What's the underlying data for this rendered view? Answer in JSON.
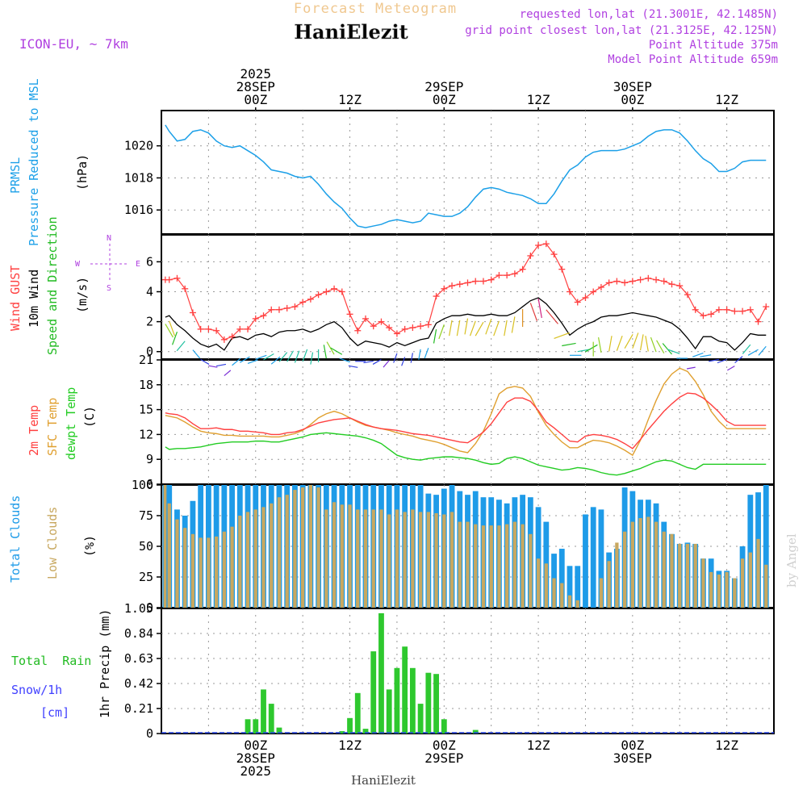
{
  "header": {
    "title": "Forecast Meteogram",
    "location": "HaniElezit",
    "model": "ICON-EU, ~ 7km",
    "info": [
      "requested lon,lat (21.3001E, 42.1485N)",
      "grid point closest lon,lat (21.3125E, 42.125N)",
      "Point Altitude 375m",
      "Model Point Altitude 659m"
    ]
  },
  "footer": {
    "location": "HaniElezit",
    "credit": "by Angel"
  },
  "colors": {
    "pressure": "#1ca0e8",
    "gust": "#ff4040",
    "wind": "#000000",
    "dir": "#22bb22",
    "t2m": "#ff4040",
    "tsfc": "#e0a030",
    "dewpt": "#22cc22",
    "cloud_total": "#1e9be8",
    "cloud_low": "#c8a860",
    "rain": "#2ec82e",
    "snow": "#4040ff",
    "purple": "#b040e0",
    "title": "#f0c890"
  },
  "time_axis": {
    "top_labels": [
      {
        "lines": [
          "2025",
          "28SEP",
          "00Z"
        ],
        "h": 24
      },
      {
        "lines": [
          "12Z"
        ],
        "h": 36
      },
      {
        "lines": [
          "29SEP",
          "00Z"
        ],
        "h": 48
      },
      {
        "lines": [
          "12Z"
        ],
        "h": 60
      },
      {
        "lines": [
          "30SEP",
          "00Z"
        ],
        "h": 72
      },
      {
        "lines": [
          "12Z"
        ],
        "h": 84
      }
    ],
    "bottom_labels": [
      {
        "lines": [
          "00Z",
          "28SEP",
          "2025"
        ],
        "h": 24
      },
      {
        "lines": [
          "12Z"
        ],
        "h": 36
      },
      {
        "lines": [
          "00Z",
          "29SEP"
        ],
        "h": 48
      },
      {
        "lines": [
          "12Z"
        ],
        "h": 60
      },
      {
        "lines": [
          "00Z",
          "30SEP"
        ],
        "h": 72
      },
      {
        "lines": [
          "12Z"
        ],
        "h": 84
      }
    ]
  },
  "chart_data": [
    {
      "id": "pressure",
      "type": "line",
      "ylabel": [
        "PRMSL",
        "Pressure Reduced to MSL"
      ],
      "units": "(hPa)",
      "ylim": [
        1014.5,
        1022.2
      ],
      "ticks": [
        1016,
        1018,
        1020
      ],
      "x_hours": [
        12.5,
        13,
        14,
        15,
        16,
        17,
        18,
        19,
        20,
        21,
        22,
        23,
        24,
        25,
        26,
        27,
        28,
        29,
        30,
        31,
        32,
        33,
        34,
        35,
        36,
        37,
        38,
        39,
        40,
        41,
        42,
        43,
        44,
        45,
        46,
        47,
        48,
        49,
        50,
        51,
        52,
        53,
        54,
        55,
        56,
        57,
        58,
        59,
        60,
        61,
        62,
        63,
        64,
        65,
        66,
        67,
        68,
        69,
        70,
        71,
        72,
        73,
        74,
        75,
        76,
        77,
        78,
        79,
        80,
        81,
        82,
        83,
        84,
        85,
        86,
        87,
        88,
        89
      ],
      "values": [
        1021.3,
        1020.9,
        1020.3,
        1020.4,
        1020.9,
        1021.0,
        1020.8,
        1020.3,
        1020.0,
        1019.9,
        1020.0,
        1019.7,
        1019.4,
        1019.0,
        1018.5,
        1018.4,
        1018.3,
        1018.1,
        1018.0,
        1018.1,
        1017.6,
        1017.0,
        1016.5,
        1016.1,
        1015.5,
        1015.0,
        1014.9,
        1015.0,
        1015.1,
        1015.3,
        1015.4,
        1015.3,
        1015.2,
        1015.3,
        1015.8,
        1015.7,
        1015.6,
        1015.6,
        1015.8,
        1016.2,
        1016.8,
        1017.3,
        1017.4,
        1017.3,
        1017.1,
        1017.0,
        1016.9,
        1016.7,
        1016.4,
        1016.4,
        1017.0,
        1017.8,
        1018.5,
        1018.8,
        1019.3,
        1019.6,
        1019.7,
        1019.7,
        1019.7,
        1019.8,
        1020.0,
        1020.2,
        1020.6,
        1020.9,
        1021.0,
        1021.0,
        1020.8,
        1020.3,
        1019.7,
        1019.2,
        1018.9,
        1018.4,
        1018.4,
        1018.6,
        1019.0,
        1019.1,
        1019.1,
        1019.1
      ]
    },
    {
      "id": "wind",
      "type": "line",
      "ylabel_gust": "Wind GUST",
      "ylabel_wind": "10m Wind",
      "ylabel_dir": "Speed and Direction",
      "units": "(m/s)",
      "ylim": [
        -0.5,
        7.8
      ],
      "ticks": [
        0,
        2,
        4,
        6
      ],
      "compass": {
        "w": "W",
        "e": "E",
        "n": "N",
        "s": "S"
      },
      "x_hours": [
        12.5,
        13,
        14,
        15,
        16,
        17,
        18,
        19,
        20,
        21,
        22,
        23,
        24,
        25,
        26,
        27,
        28,
        29,
        30,
        31,
        32,
        33,
        34,
        35,
        36,
        37,
        38,
        39,
        40,
        41,
        42,
        43,
        44,
        45,
        46,
        47,
        48,
        49,
        50,
        51,
        52,
        53,
        54,
        55,
        56,
        57,
        58,
        59,
        60,
        61,
        62,
        63,
        64,
        65,
        66,
        67,
        68,
        69,
        70,
        71,
        72,
        73,
        74,
        75,
        76,
        77,
        78,
        79,
        80,
        81,
        82,
        83,
        84,
        85,
        86,
        87,
        88,
        89
      ],
      "gust": [
        4.8,
        4.8,
        4.9,
        4.2,
        2.6,
        1.5,
        1.5,
        1.4,
        0.8,
        1.0,
        1.5,
        1.5,
        2.2,
        2.4,
        2.8,
        2.8,
        2.9,
        3.0,
        3.3,
        3.5,
        3.8,
        4.0,
        4.2,
        4.0,
        2.5,
        1.4,
        2.2,
        1.7,
        2.0,
        1.6,
        1.2,
        1.5,
        1.6,
        1.7,
        1.8,
        3.7,
        4.2,
        4.4,
        4.5,
        4.6,
        4.7,
        4.7,
        4.8,
        5.1,
        5.1,
        5.2,
        5.5,
        6.4,
        7.1,
        7.2,
        6.5,
        5.5,
        4.0,
        3.3,
        3.6,
        4.0,
        4.3,
        4.6,
        4.7,
        4.6,
        4.7,
        4.8,
        4.9,
        4.8,
        4.7,
        4.5,
        4.4,
        3.8,
        2.8,
        2.4,
        2.5,
        2.8,
        2.8,
        2.7,
        2.7,
        2.8,
        2.0,
        3.0
      ],
      "wind": [
        2.3,
        2.4,
        1.8,
        1.4,
        0.9,
        0.5,
        0.3,
        0.5,
        0.1,
        0.9,
        1.0,
        0.8,
        1.1,
        1.2,
        1.0,
        1.3,
        1.4,
        1.4,
        1.5,
        1.3,
        1.5,
        1.8,
        2.0,
        1.6,
        0.9,
        0.4,
        0.7,
        0.6,
        0.5,
        0.3,
        0.6,
        0.4,
        0.6,
        0.8,
        0.9,
        1.9,
        2.2,
        2.4,
        2.4,
        2.5,
        2.4,
        2.4,
        2.5,
        2.4,
        2.4,
        2.6,
        3.0,
        3.4,
        3.6,
        3.2,
        2.6,
        1.9,
        1.1,
        1.5,
        1.8,
        2.0,
        2.3,
        2.4,
        2.4,
        2.5,
        2.6,
        2.5,
        2.4,
        2.3,
        2.1,
        1.9,
        1.5,
        0.9,
        0.2,
        1.0,
        1.0,
        0.7,
        0.6,
        0.1,
        0.6,
        1.2,
        1.1,
        1.1
      ],
      "direction_deg": [
        330,
        340,
        20,
        40,
        320,
        300,
        280,
        260,
        230,
        230,
        240,
        250,
        250,
        240,
        230,
        220,
        210,
        200,
        200,
        190,
        180,
        170,
        150,
        120,
        110,
        100,
        90,
        80,
        60,
        40,
        20,
        20,
        10,
        10,
        20,
        10,
        20,
        10,
        10,
        10,
        20,
        30,
        20,
        20,
        10,
        10,
        0,
        340,
        350,
        320,
        250,
        260,
        270,
        260,
        240,
        180,
        170,
        190,
        200,
        210,
        200,
        190,
        170,
        160,
        150,
        140,
        110,
        90,
        80,
        70,
        80,
        80,
        70,
        60,
        50,
        40,
        60,
        40
      ]
    },
    {
      "id": "temperature",
      "type": "line",
      "ylabel": [
        "2m Temp",
        "SFC Temp",
        "dewpt Temp"
      ],
      "units": "(C)",
      "ylim": [
        6,
        21
      ],
      "ticks": [
        6,
        9,
        12,
        15,
        18,
        21
      ],
      "x_hours": [
        12.5,
        13,
        14,
        15,
        16,
        17,
        18,
        19,
        20,
        21,
        22,
        23,
        24,
        25,
        26,
        27,
        28,
        29,
        30,
        31,
        32,
        33,
        34,
        35,
        36,
        37,
        38,
        39,
        40,
        41,
        42,
        43,
        44,
        45,
        46,
        47,
        48,
        49,
        50,
        51,
        52,
        53,
        54,
        55,
        56,
        57,
        58,
        59,
        60,
        61,
        62,
        63,
        64,
        65,
        66,
        67,
        68,
        69,
        70,
        71,
        72,
        73,
        74,
        75,
        76,
        77,
        78,
        79,
        80,
        81,
        82,
        83,
        84,
        85,
        86,
        87,
        88,
        89
      ],
      "t2m": [
        14.6,
        14.5,
        14.4,
        14.0,
        13.3,
        12.7,
        12.7,
        12.8,
        12.6,
        12.6,
        12.4,
        12.4,
        12.3,
        12.2,
        12.0,
        12.0,
        12.2,
        12.3,
        12.6,
        13.0,
        13.4,
        13.6,
        13.8,
        13.9,
        14.0,
        13.6,
        13.2,
        12.9,
        12.7,
        12.6,
        12.5,
        12.3,
        12.1,
        12.0,
        11.9,
        11.7,
        11.5,
        11.3,
        11.1,
        11.0,
        11.6,
        12.3,
        13.3,
        14.6,
        15.9,
        16.4,
        16.4,
        16.0,
        14.9,
        13.5,
        12.8,
        12.0,
        11.2,
        11.1,
        11.8,
        12.0,
        11.9,
        11.7,
        11.4,
        10.9,
        10.3,
        11.4,
        12.6,
        13.7,
        14.8,
        15.7,
        16.5,
        17.0,
        16.9,
        16.4,
        15.6,
        14.7,
        13.6,
        13.1,
        13.1,
        13.1,
        13.1,
        13.1
      ],
      "tsfc": [
        14.3,
        14.2,
        14.0,
        13.5,
        12.9,
        12.4,
        12.2,
        12.1,
        11.9,
        11.9,
        11.8,
        11.8,
        11.8,
        11.8,
        11.7,
        11.7,
        11.9,
        12.1,
        12.5,
        13.2,
        14.0,
        14.5,
        14.8,
        14.5,
        14.0,
        13.5,
        13.1,
        12.9,
        12.7,
        12.5,
        12.2,
        12.0,
        11.8,
        11.5,
        11.3,
        11.1,
        10.8,
        10.4,
        10.0,
        9.8,
        10.9,
        12.4,
        14.5,
        16.9,
        17.6,
        17.8,
        17.6,
        16.6,
        14.7,
        13.1,
        12.0,
        11.1,
        10.4,
        10.4,
        10.9,
        11.3,
        11.2,
        11.0,
        10.6,
        10.1,
        9.5,
        11.3,
        13.8,
        16.1,
        18.1,
        19.3,
        20.0,
        19.6,
        18.4,
        16.8,
        14.8,
        13.6,
        12.7,
        12.7,
        12.7,
        12.7,
        12.7,
        12.7
      ],
      "dewpt": [
        10.5,
        10.2,
        10.3,
        10.3,
        10.4,
        10.5,
        10.7,
        10.9,
        11.0,
        11.1,
        11.1,
        11.1,
        11.2,
        11.2,
        11.1,
        11.1,
        11.3,
        11.5,
        11.7,
        12.0,
        12.1,
        12.2,
        12.1,
        12.0,
        11.9,
        11.8,
        11.6,
        11.3,
        10.9,
        10.2,
        9.5,
        9.2,
        9.0,
        8.9,
        9.1,
        9.2,
        9.3,
        9.3,
        9.2,
        9.1,
        8.9,
        8.6,
        8.4,
        8.5,
        9.1,
        9.3,
        9.1,
        8.7,
        8.3,
        8.1,
        7.9,
        7.7,
        7.8,
        8.0,
        7.9,
        7.7,
        7.4,
        7.2,
        7.1,
        7.3,
        7.6,
        7.9,
        8.3,
        8.7,
        8.9,
        8.8,
        8.4,
        8.0,
        7.8,
        8.4,
        8.4,
        8.4,
        8.4,
        8.4,
        8.4,
        8.4,
        8.4,
        8.4
      ]
    },
    {
      "id": "clouds",
      "type": "bar",
      "ylabel": [
        "Total Clouds",
        "Low Clouds"
      ],
      "units": "(%)",
      "ylim": [
        0,
        100
      ],
      "ticks": [
        0,
        25,
        50,
        75,
        100
      ],
      "x_hours": [
        12.5,
        13,
        14,
        15,
        16,
        17,
        18,
        19,
        20,
        21,
        22,
        23,
        24,
        25,
        26,
        27,
        28,
        29,
        30,
        31,
        32,
        33,
        34,
        35,
        36,
        37,
        38,
        39,
        40,
        41,
        42,
        43,
        44,
        45,
        46,
        47,
        48,
        49,
        50,
        51,
        52,
        53,
        54,
        55,
        56,
        57,
        58,
        59,
        60,
        61,
        62,
        63,
        64,
        65,
        66,
        67,
        68,
        69,
        70,
        71,
        72,
        73,
        74,
        75,
        76,
        77,
        78,
        79,
        80,
        81,
        82,
        83,
        84,
        85,
        86,
        87,
        88,
        89
      ],
      "total": [
        100,
        100,
        80,
        75,
        87,
        100,
        100,
        100,
        100,
        100,
        100,
        100,
        100,
        100,
        100,
        100,
        100,
        100,
        100,
        100,
        100,
        100,
        100,
        100,
        100,
        100,
        100,
        100,
        100,
        100,
        100,
        100,
        100,
        100,
        93,
        92,
        97,
        100,
        95,
        92,
        95,
        90,
        90,
        88,
        85,
        90,
        92,
        90,
        82,
        70,
        44,
        48,
        34,
        34,
        76,
        82,
        80,
        45,
        48,
        98,
        95,
        88,
        88,
        85,
        70,
        60,
        52,
        53,
        52,
        40,
        40,
        30,
        30,
        24,
        50,
        92,
        94,
        100
      ],
      "low": [
        100,
        85,
        72,
        65,
        60,
        57,
        57,
        58,
        62,
        66,
        75,
        78,
        80,
        82,
        85,
        90,
        92,
        96,
        98,
        100,
        98,
        80,
        86,
        84,
        84,
        80,
        80,
        80,
        80,
        76,
        80,
        78,
        80,
        78,
        78,
        77,
        76,
        78,
        70,
        70,
        68,
        67,
        67,
        67,
        68,
        70,
        68,
        60,
        40,
        36,
        24,
        20,
        10,
        6,
        0,
        0,
        24,
        38,
        53,
        62,
        70,
        73,
        74,
        70,
        62,
        60,
        52,
        52,
        52,
        40,
        29,
        27,
        29,
        24,
        40,
        45,
        56,
        35
      ]
    },
    {
      "id": "precip",
      "type": "bar",
      "ylabel": "1hr Precip (mm)",
      "legend": [
        "Total  Rain",
        "Snow/1h",
        "[cm]"
      ],
      "ylim": [
        0,
        1.05
      ],
      "ticks": [
        0,
        0.21,
        0.42,
        0.63,
        0.84,
        1.05
      ],
      "x_hours": [
        12.5,
        13,
        14,
        15,
        16,
        17,
        18,
        19,
        20,
        21,
        22,
        23,
        24,
        25,
        26,
        27,
        28,
        29,
        30,
        31,
        32,
        33,
        34,
        35,
        36,
        37,
        38,
        39,
        40,
        41,
        42,
        43,
        44,
        45,
        46,
        47,
        48,
        49,
        50,
        51,
        52,
        53,
        54,
        55,
        56,
        57,
        58,
        59,
        60,
        61,
        62,
        63,
        64,
        65,
        66,
        67,
        68,
        69,
        70,
        71,
        72,
        73,
        74,
        75,
        76,
        77,
        78,
        79,
        80,
        81,
        82,
        83,
        84,
        85,
        86,
        87,
        88,
        89
      ],
      "rain": [
        0,
        0,
        0,
        0,
        0,
        0,
        0,
        0,
        0,
        0,
        0,
        0.12,
        0.12,
        0.37,
        0.25,
        0.05,
        0,
        0,
        0,
        0,
        0,
        0,
        0,
        0.02,
        0.13,
        0.34,
        0.04,
        0.69,
        1.01,
        0.37,
        0.55,
        0.73,
        0.55,
        0.25,
        0.51,
        0.5,
        0.12,
        0,
        0,
        0,
        0.03,
        0,
        0,
        0,
        0,
        0,
        0,
        0,
        0,
        0,
        0,
        0,
        0,
        0,
        0,
        0,
        0,
        0,
        0,
        0,
        0,
        0,
        0,
        0,
        0,
        0,
        0,
        0,
        0,
        0,
        0,
        0,
        0,
        0,
        0,
        0,
        0,
        0
      ]
    }
  ]
}
